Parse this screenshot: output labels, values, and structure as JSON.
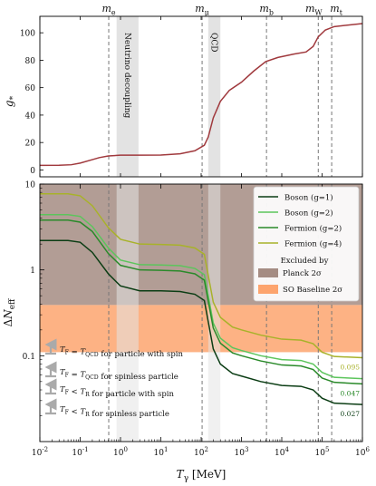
{
  "chart_data": [
    {
      "type": "line",
      "panel": "top",
      "ylabel": "g*",
      "x_scale": "log",
      "xlim": [
        0.01,
        1000000
      ],
      "ylim": [
        -5,
        112
      ],
      "y_ticks": [
        "0",
        "20",
        "40",
        "60",
        "80",
        "100"
      ],
      "y_tick_values": [
        0,
        20,
        40,
        60,
        80,
        100
      ],
      "mass_thresholds": [
        {
          "label": "m_e",
          "x": 0.511
        },
        {
          "label": "m_μ",
          "x": 105.7
        },
        {
          "label": "m_b",
          "x": 4180
        },
        {
          "label": "m_W",
          "x": 80400
        },
        {
          "label": "m_t",
          "x": 173000
        }
      ],
      "bands": [
        {
          "label": "Neutrino decoupling",
          "x_from": 0.8,
          "x_to": 2.8
        },
        {
          "label": "QCD",
          "x_from": 150,
          "x_to": 300
        }
      ],
      "series": [
        {
          "color": "#a0393d",
          "points": [
            [
              0.01,
              3.36
            ],
            [
              0.03,
              3.4
            ],
            [
              0.06,
              3.8
            ],
            [
              0.1,
              5.0
            ],
            [
              0.2,
              7.5
            ],
            [
              0.3,
              9.0
            ],
            [
              0.5,
              10.2
            ],
            [
              1,
              10.75
            ],
            [
              3,
              10.75
            ],
            [
              10,
              10.9
            ],
            [
              30,
              11.8
            ],
            [
              70,
              14.0
            ],
            [
              120,
              18.0
            ],
            [
              150,
              24.0
            ],
            [
              200,
              38.0
            ],
            [
              300,
              50.0
            ],
            [
              500,
              58.0
            ],
            [
              1000,
              64.0
            ],
            [
              2000,
              72.0
            ],
            [
              4000,
              79.0
            ],
            [
              8000,
              82.0
            ],
            [
              20000,
              84.5
            ],
            [
              40000,
              86.0
            ],
            [
              60000,
              90.0
            ],
            [
              80000,
              97.0
            ],
            [
              120000,
              102.0
            ],
            [
              200000,
              104.5
            ],
            [
              1000000,
              106.75
            ]
          ]
        }
      ]
    },
    {
      "type": "line",
      "panel": "bottom",
      "xlabel": "T_γ [MeV]",
      "ylabel": "ΔN_eff",
      "x_scale": "log",
      "y_scale": "log",
      "xlim": [
        0.01,
        1000000
      ],
      "ylim": [
        0.01,
        10
      ],
      "x_ticks": [
        "10⁻²",
        "10⁻¹",
        "10⁰",
        "10¹",
        "10²",
        "10³",
        "10⁴",
        "10⁵",
        "10⁶"
      ],
      "x_tick_values": [
        0.01,
        0.1,
        1,
        10,
        100,
        1000,
        10000,
        100000,
        1000000
      ],
      "y_ticks": [
        "10",
        "1",
        "0.1"
      ],
      "y_tick_values": [
        10,
        1,
        0.1
      ],
      "regions": [
        {
          "label": "Planck 2σ",
          "y_min": 0.39,
          "y_max": 10,
          "color": "#a58c83"
        },
        {
          "label": "SO Baseline 2σ",
          "y_min": 0.11,
          "y_max": 0.39,
          "color": "#fda46e"
        }
      ],
      "series": [
        {
          "name": "Boson (g=1)",
          "color": "#0b3d14",
          "points": [
            [
              0.01,
              2.2
            ],
            [
              0.05,
              2.2
            ],
            [
              0.1,
              2.1
            ],
            [
              0.2,
              1.6
            ],
            [
              0.5,
              0.9
            ],
            [
              1,
              0.65
            ],
            [
              3,
              0.57
            ],
            [
              10,
              0.57
            ],
            [
              30,
              0.56
            ],
            [
              70,
              0.52
            ],
            [
              120,
              0.44
            ],
            [
              200,
              0.12
            ],
            [
              300,
              0.08
            ],
            [
              600,
              0.062
            ],
            [
              1000,
              0.058
            ],
            [
              3000,
              0.05
            ],
            [
              10000,
              0.045
            ],
            [
              30000,
              0.044
            ],
            [
              60000,
              0.04
            ],
            [
              100000,
              0.032
            ],
            [
              200000,
              0.028
            ],
            [
              1000000,
              0.027
            ]
          ],
          "end_label": "0.027"
        },
        {
          "name": "Boson (g=2)",
          "color": "#5cc55c",
          "points": [
            [
              0.01,
              4.4
            ],
            [
              0.05,
              4.4
            ],
            [
              0.1,
              4.2
            ],
            [
              0.2,
              3.2
            ],
            [
              0.5,
              1.8
            ],
            [
              1,
              1.3
            ],
            [
              3,
              1.15
            ],
            [
              10,
              1.14
            ],
            [
              30,
              1.12
            ],
            [
              70,
              1.04
            ],
            [
              120,
              0.88
            ],
            [
              200,
              0.24
            ],
            [
              300,
              0.16
            ],
            [
              600,
              0.124
            ],
            [
              1000,
              0.115
            ],
            [
              3000,
              0.1
            ],
            [
              10000,
              0.09
            ],
            [
              30000,
              0.088
            ],
            [
              60000,
              0.08
            ],
            [
              100000,
              0.064
            ],
            [
              200000,
              0.056
            ],
            [
              1000000,
              0.054
            ]
          ]
        },
        {
          "name": "Fermion (g=2)",
          "color": "#2a8a2a",
          "points": [
            [
              0.01,
              3.8
            ],
            [
              0.05,
              3.8
            ],
            [
              0.1,
              3.6
            ],
            [
              0.2,
              2.8
            ],
            [
              0.5,
              1.55
            ],
            [
              1,
              1.13
            ],
            [
              3,
              1.0
            ],
            [
              10,
              0.99
            ],
            [
              30,
              0.97
            ],
            [
              70,
              0.9
            ],
            [
              120,
              0.76
            ],
            [
              200,
              0.21
            ],
            [
              300,
              0.14
            ],
            [
              600,
              0.108
            ],
            [
              1000,
              0.1
            ],
            [
              3000,
              0.087
            ],
            [
              10000,
              0.078
            ],
            [
              30000,
              0.076
            ],
            [
              60000,
              0.069
            ],
            [
              100000,
              0.055
            ],
            [
              200000,
              0.049
            ],
            [
              1000000,
              0.047
            ]
          ],
          "end_label": "0.047"
        },
        {
          "name": "Fermion (g=4)",
          "color": "#a8b22a",
          "points": [
            [
              0.01,
              7.7
            ],
            [
              0.05,
              7.7
            ],
            [
              0.1,
              7.3
            ],
            [
              0.2,
              5.6
            ],
            [
              0.5,
              3.1
            ],
            [
              1,
              2.27
            ],
            [
              3,
              2.0
            ],
            [
              10,
              1.98
            ],
            [
              30,
              1.94
            ],
            [
              70,
              1.8
            ],
            [
              120,
              1.52
            ],
            [
              200,
              0.42
            ],
            [
              300,
              0.28
            ],
            [
              600,
              0.216
            ],
            [
              1000,
              0.2
            ],
            [
              3000,
              0.174
            ],
            [
              10000,
              0.156
            ],
            [
              30000,
              0.152
            ],
            [
              60000,
              0.138
            ],
            [
              100000,
              0.11
            ],
            [
              200000,
              0.098
            ],
            [
              1000000,
              0.095
            ]
          ],
          "end_label": "0.095"
        }
      ],
      "legend": {
        "placement": "top-right",
        "excluded_by": "Excluded by",
        "planck_label": "Planck 2σ",
        "so_label": "SO Baseline 2σ"
      },
      "annotations": [
        {
          "text": "T_F = T_QCD for particle with spin"
        },
        {
          "text": "T_F = T_QCD for spinless particle"
        },
        {
          "text": "T_F < T_R for particle with spin"
        },
        {
          "text": "T_F < T_R for spinless particle"
        }
      ]
    }
  ]
}
